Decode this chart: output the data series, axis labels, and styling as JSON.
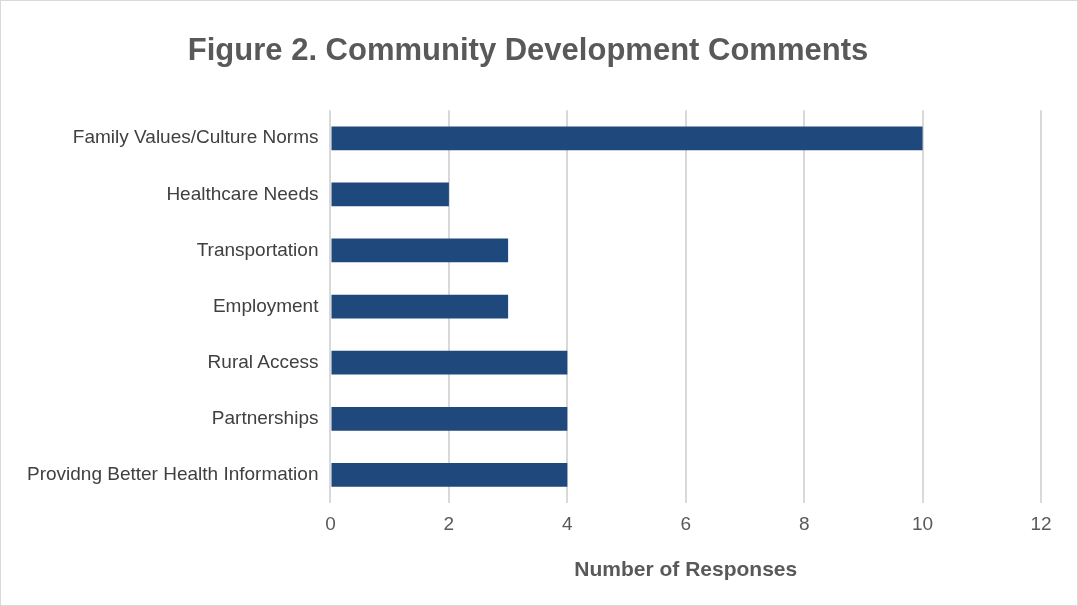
{
  "chart_data": {
    "type": "bar",
    "orientation": "horizontal",
    "title": "Figure 2. Community Development Comments",
    "xlabel": "Number of Responses",
    "categories": [
      "Family Values/Culture Norms",
      "Healthcare Needs",
      "Transportation",
      "Employment",
      "Rural Access",
      "Partnerships",
      "Providng Better Health Information"
    ],
    "values": [
      10,
      2,
      3,
      3,
      4,
      4,
      4
    ],
    "color": "#1f497d",
    "xlim": [
      0,
      12
    ],
    "xticks": [
      0,
      2,
      4,
      6,
      8,
      10,
      12
    ],
    "grid": "x",
    "legend": false
  }
}
